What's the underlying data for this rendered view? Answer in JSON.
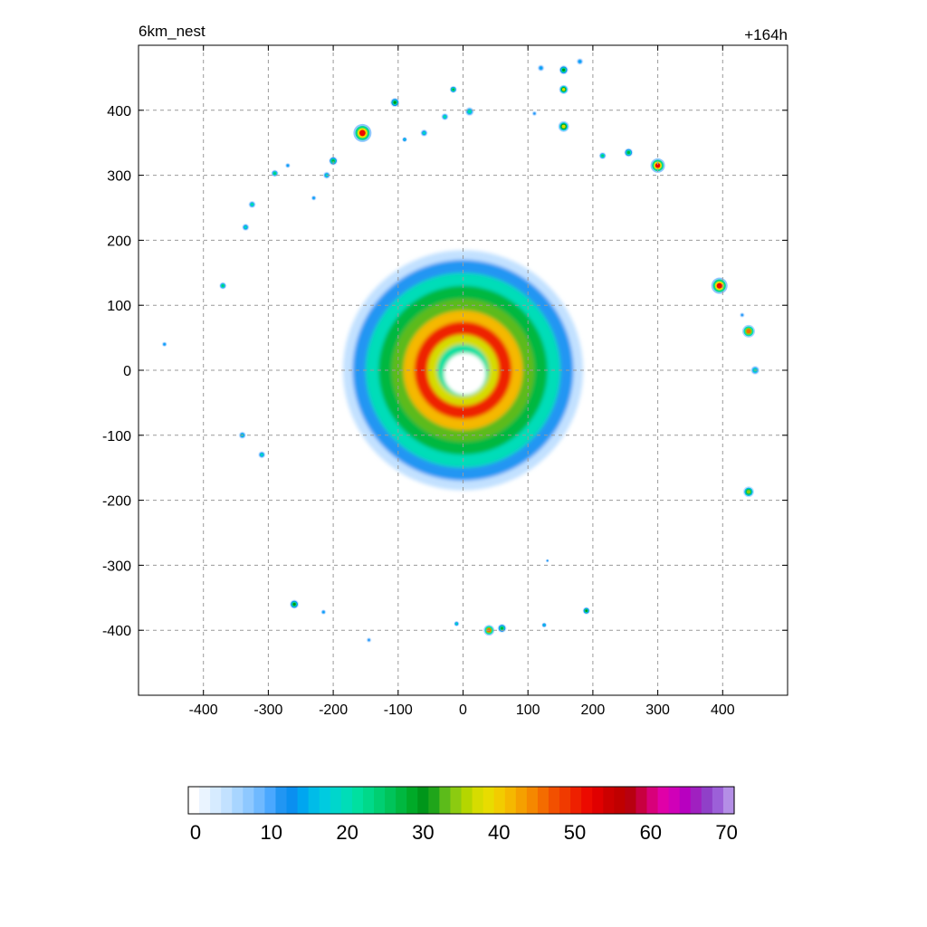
{
  "chart_data": {
    "type": "heatmap",
    "title_left": "6km_nest",
    "title_right": "+164h",
    "xlabel": "",
    "ylabel": "",
    "xlim": [
      -500,
      500
    ],
    "ylim": [
      -500,
      500
    ],
    "xticks": [
      -400,
      -300,
      -200,
      -100,
      0,
      100,
      200,
      300,
      400
    ],
    "yticks": [
      -400,
      -300,
      -200,
      -100,
      0,
      100,
      200,
      300,
      400
    ],
    "grid": true,
    "colorbar": {
      "range": [
        0,
        71
      ],
      "ticks": [
        0,
        10,
        20,
        30,
        40,
        50,
        60,
        70
      ],
      "colors": [
        "#ffffff",
        "#eaf4ff",
        "#d6ebff",
        "#c2e1ff",
        "#a8d5ff",
        "#8ec8ff",
        "#6fb9ff",
        "#4aa8ff",
        "#2196f3",
        "#0a8ff0",
        "#00a6f0",
        "#00bce8",
        "#00cbe0",
        "#00d6cc",
        "#00ddb8",
        "#00e0a0",
        "#00d98a",
        "#00cf72",
        "#00c45a",
        "#00b840",
        "#00aa28",
        "#00961a",
        "#1fa51a",
        "#5cbb1a",
        "#8ccb10",
        "#b5d600",
        "#d6dc00",
        "#e8dc00",
        "#f2cc00",
        "#f5b800",
        "#f5a000",
        "#f58800",
        "#f46c00",
        "#f25000",
        "#f03a00",
        "#ee2000",
        "#ec0a00",
        "#e00000",
        "#cc0000",
        "#c00000",
        "#b80010",
        "#c80040",
        "#d8007a",
        "#e000a8",
        "#d000b8",
        "#b800c0",
        "#a020c0",
        "#9040c8",
        "#9c60d8",
        "#b48ee6"
      ]
    },
    "storm_center": [
      0,
      0
    ],
    "rings": [
      {
        "r": 185,
        "value": 5
      },
      {
        "r": 170,
        "value": 12
      },
      {
        "r": 150,
        "value": 20
      },
      {
        "r": 130,
        "value": 27
      },
      {
        "r": 110,
        "value": 34
      },
      {
        "r": 92,
        "value": 42
      },
      {
        "r": 75,
        "value": 50
      },
      {
        "r": 55,
        "value": 38
      },
      {
        "r": 40,
        "value": 22
      }
    ],
    "cells": [
      {
        "x": 395,
        "y": 130,
        "r": 9,
        "peak": 52
      },
      {
        "x": 440,
        "y": 60,
        "r": 7,
        "peak": 46
      },
      {
        "x": 300,
        "y": 315,
        "r": 8,
        "peak": 52
      },
      {
        "x": -155,
        "y": 365,
        "r": 10,
        "peak": 52
      },
      {
        "x": 40,
        "y": -400,
        "r": 6,
        "peak": 46
      },
      {
        "x": 440,
        "y": -187,
        "r": 6,
        "peak": 35
      },
      {
        "x": -260,
        "y": -360,
        "r": 5,
        "peak": 30
      },
      {
        "x": 155,
        "y": 375,
        "r": 6,
        "peak": 38
      },
      {
        "x": 155,
        "y": 432,
        "r": 5,
        "peak": 38
      },
      {
        "x": 155,
        "y": 462,
        "r": 5,
        "peak": 30
      },
      {
        "x": 190,
        "y": -370,
        "r": 4,
        "peak": 30
      },
      {
        "x": 255,
        "y": 335,
        "r": 5,
        "peak": 28
      },
      {
        "x": 215,
        "y": 330,
        "r": 4,
        "peak": 25
      },
      {
        "x": -105,
        "y": 412,
        "r": 5,
        "peak": 30
      },
      {
        "x": -15,
        "y": 432,
        "r": 4,
        "peak": 28
      },
      {
        "x": -200,
        "y": 322,
        "r": 5,
        "peak": 28
      },
      {
        "x": -290,
        "y": 303,
        "r": 4,
        "peak": 25
      },
      {
        "x": -325,
        "y": 255,
        "r": 4,
        "peak": 22
      },
      {
        "x": -335,
        "y": 220,
        "r": 4,
        "peak": 20
      },
      {
        "x": -370,
        "y": 130,
        "r": 4,
        "peak": 25
      },
      {
        "x": -340,
        "y": -100,
        "r": 4,
        "peak": 20
      },
      {
        "x": -310,
        "y": -130,
        "r": 4,
        "peak": 20
      },
      {
        "x": -210,
        "y": 300,
        "r": 4,
        "peak": 20
      },
      {
        "x": 10,
        "y": 398,
        "r": 5,
        "peak": 22
      },
      {
        "x": -28,
        "y": 390,
        "r": 4,
        "peak": 22
      },
      {
        "x": -60,
        "y": 365,
        "r": 4,
        "peak": 20
      },
      {
        "x": 450,
        "y": 0,
        "r": 5,
        "peak": 22
      },
      {
        "x": 60,
        "y": -397,
        "r": 5,
        "peak": 28
      },
      {
        "x": -10,
        "y": -390,
        "r": 3,
        "peak": 20
      },
      {
        "x": 125,
        "y": -392,
        "r": 3,
        "peak": 18
      },
      {
        "x": 180,
        "y": 475,
        "r": 4,
        "peak": 15
      },
      {
        "x": 120,
        "y": 465,
        "r": 4,
        "peak": 15
      },
      {
        "x": -460,
        "y": 40,
        "r": 3,
        "peak": 15
      },
      {
        "x": -90,
        "y": 355,
        "r": 3,
        "peak": 18
      },
      {
        "x": -215,
        "y": -372,
        "r": 3,
        "peak": 15
      },
      {
        "x": -145,
        "y": -415,
        "r": 3,
        "peak": 12
      },
      {
        "x": 130,
        "y": -293,
        "r": 2,
        "peak": 12
      },
      {
        "x": -270,
        "y": 315,
        "r": 3,
        "peak": 15
      },
      {
        "x": -230,
        "y": 265,
        "r": 3,
        "peak": 15
      },
      {
        "x": 430,
        "y": 85,
        "r": 3,
        "peak": 12
      },
      {
        "x": 110,
        "y": 395,
        "r": 3,
        "peak": 12
      }
    ]
  }
}
